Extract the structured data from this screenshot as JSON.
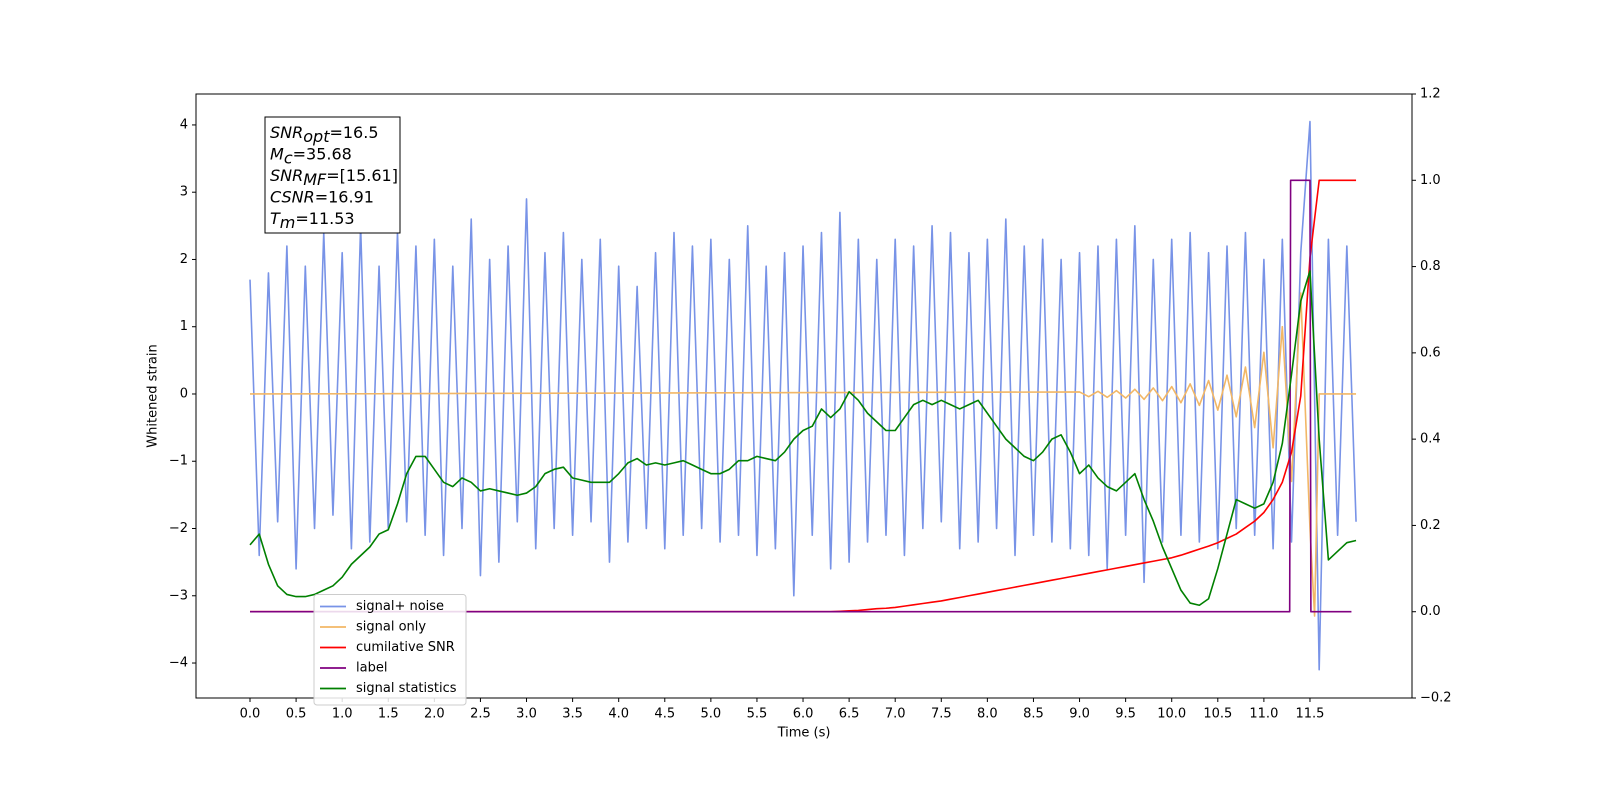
{
  "chart_data": {
    "type": "line",
    "xlabel": "Time (s)",
    "ylabel": "Whitened strain",
    "xlim": [
      -0.586,
      12.607
    ],
    "ylim": [
      -4.52,
      4.46
    ],
    "y2lim": [
      -0.2,
      1.2
    ],
    "xticks": [
      {
        "value": 0,
        "label": "0.0"
      },
      0.5,
      {
        "value": 1,
        "label": "1.0"
      },
      1.5,
      {
        "value": 2,
        "label": "2.0"
      },
      2.5,
      {
        "value": 3,
        "label": "3.0"
      },
      3.5,
      {
        "value": 4,
        "label": "4.0"
      },
      4.5,
      {
        "value": 5,
        "label": "5.0"
      },
      5.5,
      {
        "value": 6,
        "label": "6.0"
      },
      6.5,
      {
        "value": 7,
        "label": "7.0"
      },
      7.5,
      {
        "value": 8,
        "label": "8.0"
      },
      8.5,
      {
        "value": 9,
        "label": "9.0"
      },
      9.5,
      {
        "value": 10,
        "label": "10.0"
      },
      10.5,
      {
        "value": 11,
        "label": "11.0"
      },
      11.5
    ],
    "yticks": [
      {
        "value": -4,
        "label": "−4"
      },
      {
        "value": -3,
        "label": "−3"
      },
      {
        "value": -2,
        "label": "−2"
      },
      {
        "value": -1,
        "label": "−1"
      },
      0,
      1,
      2,
      3,
      4
    ],
    "y2ticks": [
      {
        "value": -0.2,
        "label": "−0.2"
      },
      {
        "value": 0,
        "label": "0.0"
      },
      0.2,
      0.4,
      0.6,
      0.8,
      {
        "value": 1,
        "label": "1.0"
      },
      1.2
    ],
    "grid": false,
    "legend": "lower left",
    "annotation": [
      {
        "symbol": "SNR",
        "sub": "opt",
        "text": "=16.5"
      },
      {
        "symbol": "M",
        "sub": "c",
        "text": "=35.68"
      },
      {
        "symbol": "SNR",
        "sub": "MF",
        "text": "=[15.61]"
      },
      {
        "symbol": "CSNR",
        "text": "=16.91"
      },
      {
        "symbol": "T",
        "sub": "m",
        "text": "=11.53"
      }
    ],
    "x": [
      0,
      0.1,
      0.2,
      0.3,
      0.4,
      0.5,
      0.6,
      0.7,
      0.8,
      0.9,
      1,
      1.1,
      1.2,
      1.3,
      1.4,
      1.5,
      1.6,
      1.7,
      1.8,
      1.9,
      2,
      2.1,
      2.2,
      2.3,
      2.4,
      2.5,
      2.6,
      2.7,
      2.8,
      2.9,
      3,
      3.1,
      3.2,
      3.3,
      3.4,
      3.5,
      3.6,
      3.7,
      3.8,
      3.9,
      4,
      4.1,
      4.2,
      4.3,
      4.4,
      4.5,
      4.6,
      4.7,
      4.8,
      4.9,
      5,
      5.1,
      5.2,
      5.3,
      5.4,
      5.5,
      5.6,
      5.7,
      5.8,
      5.9,
      6,
      6.1,
      6.2,
      6.3,
      6.4,
      6.5,
      6.6,
      6.7,
      6.8,
      6.9,
      7,
      7.1,
      7.2,
      7.3,
      7.4,
      7.5,
      7.6,
      7.7,
      7.8,
      7.9,
      8,
      8.1,
      8.2,
      8.3,
      8.4,
      8.5,
      8.6,
      8.7,
      8.8,
      8.9,
      9,
      9.1,
      9.2,
      9.3,
      9.4,
      9.5,
      9.6,
      9.7,
      9.8,
      9.9,
      10,
      10.1,
      10.2,
      10.3,
      10.4,
      10.5,
      10.6,
      10.7,
      10.8,
      10.9,
      11,
      11.1,
      11.2,
      11.3,
      11.4,
      11.5,
      11.6,
      11.7,
      11.8,
      11.9,
      12
    ],
    "series": [
      {
        "name": "signal+ noise",
        "color": "#7893e7",
        "values": [
          1.7,
          -2.4,
          1.8,
          -1.9,
          2.2,
          -2.6,
          1.9,
          -2.0,
          2.4,
          -1.8,
          2.1,
          -2.3,
          2.5,
          -2.2,
          1.9,
          -2.0,
          2.4,
          -1.9,
          2.2,
          -2.1,
          2.3,
          -2.4,
          1.9,
          -2.0,
          2.6,
          -2.7,
          2.0,
          -2.5,
          2.2,
          -1.9,
          2.9,
          -2.3,
          2.1,
          -2.0,
          2.4,
          -2.1,
          2.0,
          -1.9,
          2.3,
          -2.5,
          1.9,
          -2.2,
          1.6,
          -2.0,
          2.1,
          -2.3,
          2.4,
          -2.1,
          2.2,
          -2.0,
          2.3,
          -2.2,
          2.0,
          -2.1,
          2.5,
          -2.4,
          1.9,
          -2.3,
          2.1,
          -3.0,
          2.2,
          -2.1,
          2.4,
          -2.6,
          2.7,
          -2.5,
          2.3,
          -2.2,
          2.0,
          -2.1,
          2.3,
          -2.4,
          2.2,
          -2.0,
          2.5,
          -1.9,
          2.4,
          -2.3,
          2.1,
          -2.2,
          2.3,
          -2.0,
          2.6,
          -2.4,
          2.2,
          -2.1,
          2.3,
          -2.2,
          2.0,
          -2.3,
          2.1,
          -2.4,
          2.2,
          -2.6,
          2.3,
          -2.1,
          2.5,
          -2.8,
          2.0,
          -2.2,
          2.3,
          -2.1,
          2.4,
          -2.2,
          2.1,
          -2.3,
          2.2,
          -2.0,
          2.4,
          -2.1,
          2.0,
          -2.3,
          2.3,
          -2.2,
          2.1,
          4.05,
          -4.1,
          2.3,
          -2.1,
          2.2,
          -1.9
        ]
      },
      {
        "name": "signal only",
        "color": "#f2b766",
        "x": [
          0,
          9,
          9.1,
          9.2,
          9.3,
          9.4,
          9.5,
          9.6,
          9.7,
          9.8,
          9.9,
          10,
          10.1,
          10.2,
          10.3,
          10.4,
          10.5,
          10.6,
          10.7,
          10.8,
          10.9,
          11,
          11.1,
          11.2,
          11.3,
          11.4,
          11.5,
          11.55,
          11.6,
          12
        ],
        "values": [
          0,
          0.03,
          -0.04,
          0.04,
          -0.05,
          0.05,
          -0.06,
          0.07,
          -0.08,
          0.09,
          -0.1,
          0.11,
          -0.13,
          0.15,
          -0.17,
          0.2,
          -0.24,
          0.28,
          -0.34,
          0.4,
          -0.5,
          0.62,
          -0.8,
          1.0,
          -1.3,
          1.5,
          -2.0,
          -3.3,
          0,
          0
        ]
      },
      {
        "name": "cumilative SNR",
        "color": "red",
        "axis": "y2",
        "values": [
          0,
          0,
          0,
          0,
          0,
          0,
          0,
          0,
          0,
          0,
          0,
          0,
          0,
          0,
          0,
          0,
          0,
          0,
          0,
          0,
          0,
          0,
          0,
          0,
          0,
          0,
          0,
          0,
          0,
          0,
          0,
          0,
          0,
          0,
          0,
          0,
          0,
          0,
          0,
          0,
          0,
          0,
          0,
          0,
          0,
          0,
          0,
          0,
          0,
          0,
          0,
          0,
          0,
          0,
          0,
          0,
          0,
          0,
          0,
          0,
          0,
          0,
          0,
          0,
          0.001,
          0.002,
          0.003,
          0.005,
          0.007,
          0.008,
          0.01,
          0.013,
          0.016,
          0.019,
          0.022,
          0.025,
          0.029,
          0.033,
          0.037,
          0.041,
          0.045,
          0.049,
          0.053,
          0.057,
          0.061,
          0.065,
          0.069,
          0.073,
          0.077,
          0.081,
          0.085,
          0.089,
          0.093,
          0.097,
          0.101,
          0.105,
          0.109,
          0.113,
          0.117,
          0.121,
          0.125,
          0.131,
          0.138,
          0.145,
          0.152,
          0.16,
          0.17,
          0.18,
          0.195,
          0.21,
          0.23,
          0.26,
          0.3,
          0.37,
          0.5,
          0.82,
          1,
          1,
          1,
          1,
          1
        ]
      },
      {
        "name": "label",
        "color": "purple",
        "axis": "y2",
        "x": [
          0,
          11.28,
          11.29,
          11.5,
          11.51,
          11.95
        ],
        "values": [
          0,
          0,
          1,
          1,
          0,
          0
        ]
      },
      {
        "name": "signal statistics",
        "color": "green",
        "axis": "y2",
        "values": [
          0.155,
          0.18,
          0.11,
          0.06,
          0.04,
          0.035,
          0.035,
          0.04,
          0.05,
          0.06,
          0.08,
          0.11,
          0.13,
          0.15,
          0.18,
          0.19,
          0.25,
          0.32,
          0.36,
          0.36,
          0.33,
          0.3,
          0.29,
          0.31,
          0.3,
          0.28,
          0.285,
          0.28,
          0.275,
          0.27,
          0.275,
          0.29,
          0.32,
          0.33,
          0.335,
          0.31,
          0.305,
          0.3,
          0.3,
          0.3,
          0.32,
          0.345,
          0.355,
          0.34,
          0.345,
          0.34,
          0.345,
          0.35,
          0.34,
          0.33,
          0.32,
          0.32,
          0.33,
          0.35,
          0.35,
          0.36,
          0.355,
          0.35,
          0.37,
          0.4,
          0.42,
          0.43,
          0.47,
          0.45,
          0.47,
          0.51,
          0.49,
          0.46,
          0.44,
          0.42,
          0.42,
          0.45,
          0.48,
          0.49,
          0.48,
          0.49,
          0.48,
          0.47,
          0.48,
          0.49,
          0.46,
          0.43,
          0.4,
          0.38,
          0.36,
          0.35,
          0.37,
          0.4,
          0.41,
          0.37,
          0.32,
          0.34,
          0.31,
          0.29,
          0.28,
          0.3,
          0.32,
          0.26,
          0.21,
          0.15,
          0.1,
          0.05,
          0.02,
          0.015,
          0.03,
          0.1,
          0.18,
          0.26,
          0.25,
          0.24,
          0.25,
          0.3,
          0.39,
          0.55,
          0.72,
          0.79,
          0.4,
          0.12,
          0.14,
          0.16,
          0.165
        ]
      }
    ]
  }
}
